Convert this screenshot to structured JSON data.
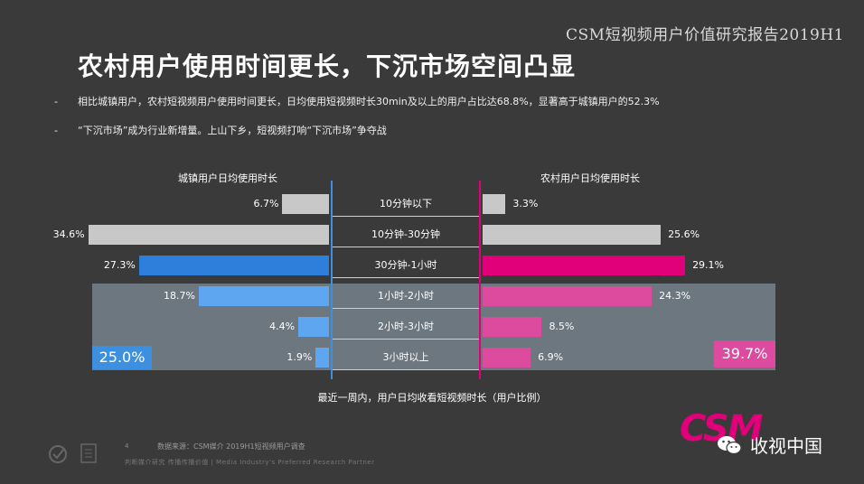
{
  "header": {
    "report_tag": "CSM短视频用户价值研究报告2019H1",
    "title": "农村用户使用时间更长，下沉市场空间凸显"
  },
  "bullets": [
    "相比城镇用户，农村短视频用户使用时间更长，日均使用短视频时长30min及以上的用户占比达68.8%，显著高于城镇用户的52.3%",
    "“下沉市场”成为行业新增量。上山下乡，短视频打响“下沉市场”争夺战"
  ],
  "bullet_mark": "-",
  "chart_data": {
    "type": "bar",
    "orientation": "horizontal-butterfly",
    "categories": [
      "10分钟以下",
      "10分钟-30分钟",
      "30分钟-1小时",
      "1小时-2小时",
      "2小时-3小时",
      "3小时以上"
    ],
    "series": [
      {
        "name": "城镇用户日均使用时长",
        "side": "left",
        "values": [
          6.7,
          34.6,
          27.3,
          18.7,
          4.4,
          1.9
        ],
        "labels": [
          "6.7%",
          "34.6%",
          "27.3%",
          "18.7%",
          "4.4%",
          "1.9%"
        ],
        "colors": [
          "#c8c8c8",
          "#c8c8c8",
          "#2e7fdc",
          "#5ea6f0",
          "#5ea6f0",
          "#5ea6f0"
        ],
        "highlight_total": "25.0%"
      },
      {
        "name": "农村用户日均使用时长",
        "side": "right",
        "values": [
          3.3,
          25.6,
          29.1,
          24.3,
          8.5,
          6.9
        ],
        "labels": [
          "3.3%",
          "25.6%",
          "29.1%",
          "24.3%",
          "8.5%",
          "6.9%"
        ],
        "colors": [
          "#c8c8c8",
          "#c8c8c8",
          "#e2007a",
          "#dd4b9e",
          "#dd4b9e",
          "#dd4b9e"
        ],
        "highlight_total": "39.7%"
      }
    ],
    "highlight_rows": [
      "1小时-2小时",
      "2小时-3小时",
      "3小时以上"
    ],
    "caption": "最近一周内，用户日均收看短视频时长（用户比例）"
  },
  "footer": {
    "page_number": "4",
    "source": "数据来源：CSM媒介 2019H1短视频用户调查",
    "slogan": "判断媒介研究 传播传播价值 | Media  Industry's  Preferred  Research  Partner",
    "brand_logo": "CSM",
    "wechat_account": "收视中国"
  },
  "colors": {
    "background": "#3a3a3a",
    "accent_blue": "#2e7fdc",
    "accent_magenta": "#e2007a",
    "highlight_band": "#6d7780"
  }
}
